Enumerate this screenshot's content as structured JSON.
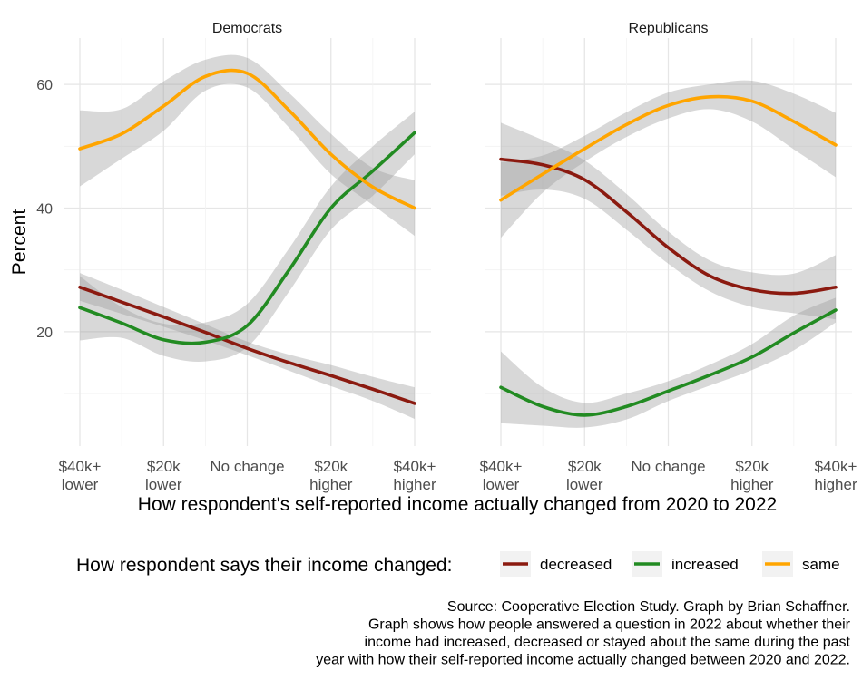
{
  "chart_data": {
    "type": "line",
    "panels": [
      "Democrats",
      "Republicans"
    ],
    "x_categories": [
      "$40k+\nlower",
      "$20k\nlower",
      "No change",
      "$20k\nhigher",
      "$40k+\nhigher"
    ],
    "xlabel": "How respondent's self-reported income actually changed from 2020 to 2022",
    "ylabel": "Percent",
    "y_ticks": [
      20,
      40,
      60
    ],
    "ylim": [
      1.5,
      67.5
    ],
    "grid": true,
    "legend": {
      "title": "How respondent says their income changed:",
      "position": "bottom"
    },
    "series_styles": [
      {
        "name": "decreased",
        "color": "#8b1a10"
      },
      {
        "name": "increased",
        "color": "#228b22"
      },
      {
        "name": "same",
        "color": "#ffa500"
      }
    ],
    "data": [
      {
        "panel": "Democrats",
        "series": [
          {
            "name": "decreased",
            "x": [
              1,
              1.5,
              2,
              2.5,
              3,
              3.5,
              4,
              4.5,
              5
            ],
            "y": [
              27.2,
              24.8,
              22.4,
              19.9,
              17.3,
              15.0,
              12.9,
              10.7,
              8.4
            ],
            "lower": [
              25.0,
              22.9,
              20.8,
              18.6,
              16.2,
              13.7,
              11.2,
              8.8,
              5.9
            ],
            "upper": [
              29.5,
              26.8,
              24.0,
              21.2,
              18.4,
              16.3,
              14.6,
              12.7,
              11.0
            ]
          },
          {
            "name": "increased",
            "x": [
              1,
              1.5,
              2,
              2.5,
              3,
              3.5,
              4,
              4.5,
              5
            ],
            "y": [
              23.9,
              21.4,
              18.7,
              18.3,
              21.0,
              30.0,
              40.0,
              46.0,
              52.2
            ],
            "lower": [
              18.6,
              19.0,
              16.1,
              15.2,
              17.5,
              26.5,
              36.5,
              42.0,
              48.7
            ],
            "upper": [
              29.0,
              24.0,
              21.3,
              21.5,
              24.5,
              33.5,
              43.5,
              50.0,
              55.6
            ]
          },
          {
            "name": "same",
            "x": [
              1,
              1.5,
              2,
              2.5,
              3,
              3.5,
              4,
              4.5,
              5
            ],
            "y": [
              49.6,
              52.0,
              56.5,
              61.3,
              61.8,
              55.8,
              48.7,
              43.4,
              40.0
            ],
            "lower": [
              43.5,
              48.0,
              52.5,
              59.0,
              59.5,
              53.0,
              45.5,
              40.5,
              35.5
            ],
            "upper": [
              55.8,
              56.0,
              60.5,
              64.0,
              64.3,
              58.6,
              52.0,
              46.5,
              44.5
            ]
          }
        ]
      },
      {
        "panel": "Republicans",
        "series": [
          {
            "name": "decreased",
            "x": [
              1,
              1.5,
              2,
              2.5,
              3,
              3.5,
              4,
              4.5,
              5
            ],
            "y": [
              47.9,
              47.0,
              44.6,
              39.4,
              33.6,
              29.0,
              26.8,
              26.2,
              27.2
            ],
            "lower": [
              42.0,
              43.0,
              41.5,
              36.5,
              31.0,
              26.5,
              24.0,
              23.0,
              22.0
            ],
            "upper": [
              53.8,
              51.0,
              47.7,
              42.3,
              36.2,
              31.5,
              29.6,
              29.4,
              32.4
            ]
          },
          {
            "name": "increased",
            "x": [
              1,
              1.5,
              2,
              2.5,
              3,
              3.5,
              4,
              4.5,
              5
            ],
            "y": [
              11.0,
              7.9,
              6.5,
              7.9,
              10.4,
              13.0,
              15.9,
              19.8,
              23.5
            ],
            "lower": [
              5.2,
              4.8,
              4.5,
              5.8,
              8.8,
              11.3,
              13.8,
              17.0,
              21.5
            ],
            "upper": [
              16.8,
              11.0,
              8.5,
              10.0,
              12.0,
              14.7,
              18.0,
              22.6,
              25.5
            ]
          },
          {
            "name": "same",
            "x": [
              1,
              1.5,
              2,
              2.5,
              3,
              3.5,
              4,
              4.5,
              5
            ],
            "y": [
              41.3,
              45.5,
              49.6,
              53.5,
              56.6,
              58.0,
              57.3,
              54.0,
              50.2
            ],
            "lower": [
              35.2,
              42.5,
              47.5,
              51.5,
              54.5,
              56.0,
              54.0,
              49.5,
              45.0
            ],
            "upper": [
              47.4,
              48.5,
              51.7,
              55.5,
              58.7,
              60.0,
              60.6,
              58.5,
              55.4
            ]
          }
        ]
      }
    ],
    "caption": [
      "Source: Cooperative Election Study. Graph by Brian Schaffner.",
      "Graph shows how people answered a question in 2022 about whether their",
      "income had increased, decreased or stayed about the same during the past",
      "year with how their self-reported income actually changed between 2020 and 2022."
    ]
  }
}
